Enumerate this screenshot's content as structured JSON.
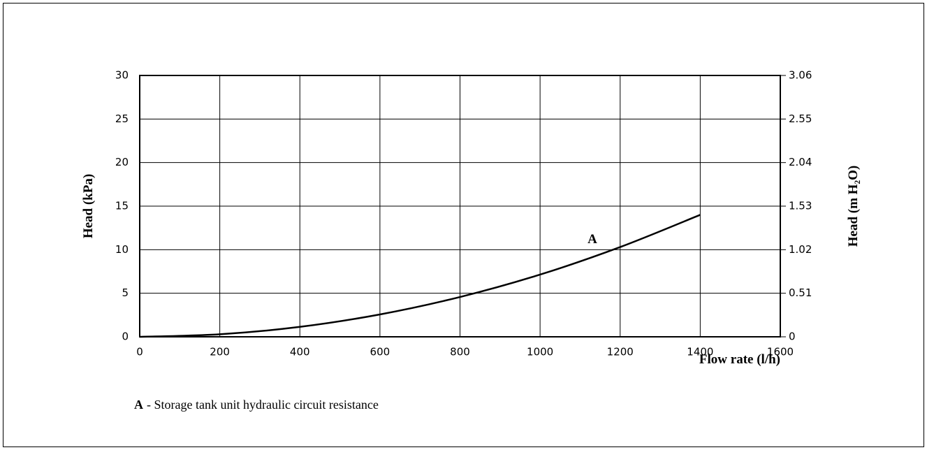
{
  "chart_data": {
    "type": "line",
    "xlabel": "Flow rate (l/h)",
    "ylabel": "Head (kPa)",
    "y2label": "Head (m H₂O)",
    "caption": "- Storage tank unit hydraulic circuit resistance",
    "x": [
      0,
      200,
      400,
      600,
      800,
      1000,
      1200,
      1400
    ],
    "series": [
      {
        "name": "A",
        "color": "#000000",
        "values": [
          0,
          0.29,
          1.14,
          2.57,
          4.57,
          7.14,
          10.3,
          14.0
        ]
      }
    ],
    "xlim": [
      0,
      1600
    ],
    "xticks": [
      0,
      200,
      400,
      600,
      800,
      1000,
      1200,
      1400,
      1600
    ],
    "ylim": [
      0,
      30
    ],
    "yticks": [
      0,
      5,
      10,
      15,
      20,
      25,
      30
    ],
    "y2lim": [
      0,
      3.06
    ],
    "y2ticks": [
      0,
      0.51,
      1.02,
      1.53,
      2.04,
      2.55,
      3.06
    ],
    "grid": true
  }
}
